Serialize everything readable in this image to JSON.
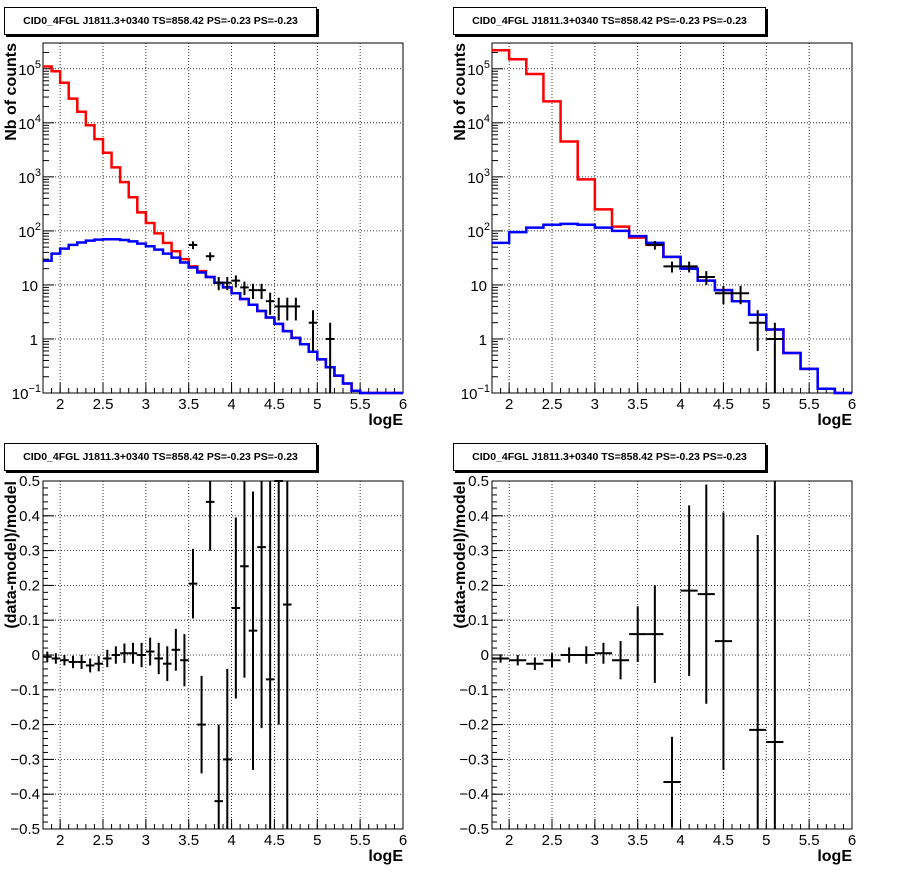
{
  "chart_data": [
    {
      "type": "line",
      "title": "CID0_4FGL J1811.3+0340 TS=858.42 PS=-0.23 PS=-0.23",
      "xlabel": "logE",
      "ylabel": "Nb of counts",
      "xlim": [
        1.8,
        6.0
      ],
      "ylim": [
        0.1,
        300000
      ],
      "log_y": true,
      "grid": true,
      "x_ticks": [
        "2",
        "2.5",
        "3",
        "3.5",
        "4",
        "4.5",
        "5",
        "5.5",
        "6"
      ],
      "y_ticks": [
        {
          "v": 0.1,
          "base": "10",
          "exp": "−1"
        },
        {
          "v": 1,
          "base": "1",
          "exp": ""
        },
        {
          "v": 10,
          "base": "10",
          "exp": ""
        },
        {
          "v": 100,
          "base": "10",
          "exp": "2"
        },
        {
          "v": 1000,
          "base": "10",
          "exp": "3"
        },
        {
          "v": 10000,
          "base": "10",
          "exp": "4"
        },
        {
          "v": 100000,
          "base": "10",
          "exp": "5"
        }
      ],
      "bin_edges": [
        1.8,
        1.9,
        2.0,
        2.1,
        2.2,
        2.3,
        2.4,
        2.5,
        2.6,
        2.7,
        2.8,
        2.9,
        3.0,
        3.1,
        3.2,
        3.3,
        3.4,
        3.5,
        3.6,
        3.7,
        3.8,
        3.9,
        4.0,
        4.1,
        4.2,
        4.3,
        4.4,
        4.5,
        4.6,
        4.7,
        4.8,
        4.9,
        5.0,
        5.1,
        5.2,
        5.3,
        5.4,
        5.5,
        5.6,
        5.7,
        5.8,
        5.9,
        6.0
      ],
      "series": [
        {
          "color": "#ff0000",
          "values": [
            110000,
            90000,
            55000,
            28000,
            16000,
            9000,
            5000,
            2800,
            1500,
            800,
            420,
            220,
            140,
            90,
            60,
            42,
            30,
            22,
            18,
            14,
            11,
            9,
            7,
            5.5,
            4.3,
            3.3,
            2.5,
            1.9,
            1.4,
            1.05,
            0.8,
            0.58,
            0.42,
            0.3,
            0.21,
            0.15,
            0.11,
            0.1,
            0.1,
            0.1,
            0.1,
            0.1
          ]
        },
        {
          "color": "#0000ff",
          "values": [
            28,
            38,
            47,
            55,
            61,
            66,
            69,
            70,
            70,
            68,
            64,
            58,
            52,
            45,
            38,
            32,
            26,
            21,
            17,
            14,
            11,
            9,
            7,
            5.5,
            4.3,
            3.3,
            2.5,
            1.9,
            1.4,
            1.05,
            0.8,
            0.58,
            0.42,
            0.3,
            0.21,
            0.15,
            0.11,
            0.1,
            0.1,
            0.1,
            0.1,
            0.1
          ]
        }
      ],
      "data_points": [
        {
          "x": 3.55,
          "y": 55,
          "ylo": 46,
          "yhi": 64
        },
        {
          "x": 3.75,
          "y": 34,
          "ylo": 28,
          "yhi": 40
        },
        {
          "x": 3.85,
          "y": 11,
          "ylo": 8,
          "yhi": 14
        },
        {
          "x": 3.95,
          "y": 11,
          "ylo": 8,
          "yhi": 14
        },
        {
          "x": 4.05,
          "y": 12,
          "ylo": 9,
          "yhi": 15
        },
        {
          "x": 4.15,
          "y": 9,
          "ylo": 6.5,
          "yhi": 11.5
        },
        {
          "x": 4.25,
          "y": 8,
          "ylo": 5.5,
          "yhi": 10.5
        },
        {
          "x": 4.35,
          "y": 8,
          "ylo": 5.5,
          "yhi": 10.5
        },
        {
          "x": 4.45,
          "y": 5,
          "ylo": 2.8,
          "yhi": 7.2
        },
        {
          "x": 4.55,
          "y": 4,
          "ylo": 2.2,
          "yhi": 5.8
        },
        {
          "x": 4.65,
          "y": 4,
          "ylo": 2.2,
          "yhi": 5.8
        },
        {
          "x": 4.75,
          "y": 4,
          "ylo": 2.2,
          "yhi": 5.8
        },
        {
          "x": 4.95,
          "y": 2,
          "ylo": 0.6,
          "yhi": 3.4
        },
        {
          "x": 5.15,
          "y": 1,
          "ylo": 0.1,
          "yhi": 2
        }
      ]
    },
    {
      "type": "line",
      "title": "CID0_4FGL J1811.3+0340 TS=858.42 PS=-0.23 PS=-0.23",
      "xlabel": "logE",
      "ylabel": "Nb of counts",
      "xlim": [
        1.8,
        6.0
      ],
      "ylim": [
        0.1,
        300000
      ],
      "log_y": true,
      "grid": true,
      "x_ticks": [
        "2",
        "2.5",
        "3",
        "3.5",
        "4",
        "4.5",
        "5",
        "5.5",
        "6"
      ],
      "y_ticks": [
        {
          "v": 0.1,
          "base": "10",
          "exp": "−1"
        },
        {
          "v": 1,
          "base": "1",
          "exp": ""
        },
        {
          "v": 10,
          "base": "10",
          "exp": ""
        },
        {
          "v": 100,
          "base": "10",
          "exp": "2"
        },
        {
          "v": 1000,
          "base": "10",
          "exp": "3"
        },
        {
          "v": 10000,
          "base": "10",
          "exp": "4"
        },
        {
          "v": 100000,
          "base": "10",
          "exp": "5"
        }
      ],
      "bin_edges": [
        1.8,
        2.0,
        2.2,
        2.4,
        2.6,
        2.8,
        3.0,
        3.2,
        3.4,
        3.6,
        3.8,
        4.0,
        4.2,
        4.4,
        4.6,
        4.8,
        5.0,
        5.2,
        5.4,
        5.6,
        5.8,
        6.0
      ],
      "series": [
        {
          "color": "#ff0000",
          "values": [
            220000,
            150000,
            80000,
            25000,
            4500,
            900,
            250,
            120,
            75,
            55,
            33,
            20,
            12,
            8,
            5,
            2.8,
            1.5,
            0.55,
            0.28,
            0.12,
            0.1
          ]
        },
        {
          "color": "#0000ff",
          "values": [
            60,
            95,
            115,
            130,
            135,
            130,
            115,
            100,
            80,
            60,
            33,
            20,
            12,
            8,
            5,
            2.8,
            1.5,
            0.55,
            0.28,
            0.12,
            0.1
          ]
        }
      ],
      "data_points": [
        {
          "x": 3.7,
          "y": 55,
          "ylo": 45,
          "yhi": 65
        },
        {
          "x": 3.9,
          "y": 22,
          "ylo": 17,
          "yhi": 27
        },
        {
          "x": 4.1,
          "y": 22,
          "ylo": 17,
          "yhi": 27
        },
        {
          "x": 4.3,
          "y": 14,
          "ylo": 10,
          "yhi": 18
        },
        {
          "x": 4.5,
          "y": 7,
          "ylo": 4.4,
          "yhi": 9.6
        },
        {
          "x": 4.7,
          "y": 7,
          "ylo": 4.4,
          "yhi": 9.6
        },
        {
          "x": 4.9,
          "y": 2,
          "ylo": 0.6,
          "yhi": 3.4
        },
        {
          "x": 5.1,
          "y": 1,
          "ylo": 0.1,
          "yhi": 2
        }
      ]
    },
    {
      "type": "scatter",
      "title": "CID0_4FGL J1811.3+0340 TS=858.42 PS=-0.23 PS=-0.23",
      "xlabel": "logE",
      "ylabel": "(data-model)/model",
      "xlim": [
        1.8,
        6.0
      ],
      "ylim": [
        -0.5,
        0.5
      ],
      "grid": true,
      "x_ticks": [
        "2",
        "2.5",
        "3",
        "3.5",
        "4",
        "4.5",
        "5",
        "5.5",
        "6"
      ],
      "y_ticks": [
        "−0.5",
        "−0.4",
        "−0.3",
        "−0.2",
        "−0.1",
        "0",
        "0.1",
        "0.2",
        "0.3",
        "0.4",
        "0.5"
      ],
      "data_points": [
        {
          "x": 1.85,
          "xw": 0.05,
          "y": -0.005,
          "err": 0.015
        },
        {
          "x": 1.95,
          "xw": 0.05,
          "y": -0.01,
          "err": 0.015
        },
        {
          "x": 2.05,
          "xw": 0.05,
          "y": -0.015,
          "err": 0.015
        },
        {
          "x": 2.15,
          "xw": 0.05,
          "y": -0.02,
          "err": 0.018
        },
        {
          "x": 2.25,
          "xw": 0.05,
          "y": -0.02,
          "err": 0.02
        },
        {
          "x": 2.35,
          "xw": 0.05,
          "y": -0.03,
          "err": 0.02
        },
        {
          "x": 2.45,
          "xw": 0.05,
          "y": -0.025,
          "err": 0.022
        },
        {
          "x": 2.55,
          "xw": 0.05,
          "y": -0.01,
          "err": 0.025
        },
        {
          "x": 2.65,
          "xw": 0.05,
          "y": 0.0,
          "err": 0.025
        },
        {
          "x": 2.75,
          "xw": 0.05,
          "y": 0.005,
          "err": 0.028
        },
        {
          "x": 2.85,
          "xw": 0.05,
          "y": 0.005,
          "err": 0.03
        },
        {
          "x": 2.95,
          "xw": 0.05,
          "y": 0.0,
          "err": 0.035
        },
        {
          "x": 3.05,
          "xw": 0.05,
          "y": 0.01,
          "err": 0.04
        },
        {
          "x": 3.15,
          "xw": 0.05,
          "y": -0.01,
          "err": 0.045
        },
        {
          "x": 3.25,
          "xw": 0.05,
          "y": -0.025,
          "err": 0.05
        },
        {
          "x": 3.35,
          "xw": 0.05,
          "y": 0.015,
          "err": 0.06
        },
        {
          "x": 3.45,
          "xw": 0.05,
          "y": -0.015,
          "err": 0.075
        },
        {
          "x": 3.55,
          "xw": 0.05,
          "y": 0.205,
          "err": 0.1
        },
        {
          "x": 3.65,
          "xw": 0.05,
          "y": -0.2,
          "err": 0.14
        },
        {
          "x": 3.75,
          "xw": 0.05,
          "y": 0.44,
          "err": 0.14
        },
        {
          "x": 3.85,
          "xw": 0.05,
          "y": -0.42,
          "err": 0.22
        },
        {
          "x": 3.95,
          "xw": 0.05,
          "y": -0.3,
          "err": 0.26
        },
        {
          "x": 4.05,
          "xw": 0.05,
          "y": 0.135,
          "err": 0.26
        },
        {
          "x": 4.15,
          "xw": 0.05,
          "y": 0.255,
          "err": 0.32
        },
        {
          "x": 4.25,
          "xw": 0.05,
          "y": 0.07,
          "err": 0.4
        },
        {
          "x": 4.35,
          "xw": 0.05,
          "y": 0.31,
          "err": 0.52
        },
        {
          "x": 4.45,
          "xw": 0.05,
          "y": -0.07,
          "err": 0.6
        },
        {
          "x": 4.55,
          "xw": 0.05,
          "y": 0.5,
          "err": 0.7
        },
        {
          "x": 4.65,
          "xw": 0.05,
          "y": 0.145,
          "err": 0.8
        }
      ]
    },
    {
      "type": "scatter",
      "title": "CID0_4FGL J1811.3+0340 TS=858.42 PS=-0.23 PS=-0.23",
      "xlabel": "logE",
      "ylabel": "(data-model)/model",
      "xlim": [
        1.8,
        6.0
      ],
      "ylim": [
        -0.5,
        0.5
      ],
      "grid": true,
      "x_ticks": [
        "2",
        "2.5",
        "3",
        "3.5",
        "4",
        "4.5",
        "5",
        "5.5",
        "6"
      ],
      "y_ticks": [
        "−0.5",
        "−0.4",
        "−0.3",
        "−0.2",
        "−0.1",
        "0",
        "0.1",
        "0.2",
        "0.3",
        "0.4",
        "0.5"
      ],
      "data_points": [
        {
          "x": 1.9,
          "xw": 0.1,
          "y": -0.01,
          "err": 0.012
        },
        {
          "x": 2.1,
          "xw": 0.1,
          "y": -0.015,
          "err": 0.015
        },
        {
          "x": 2.3,
          "xw": 0.1,
          "y": -0.025,
          "err": 0.018
        },
        {
          "x": 2.5,
          "xw": 0.1,
          "y": -0.015,
          "err": 0.02
        },
        {
          "x": 2.7,
          "xw": 0.1,
          "y": 0.0,
          "err": 0.022
        },
        {
          "x": 2.9,
          "xw": 0.1,
          "y": 0.0,
          "err": 0.025
        },
        {
          "x": 3.1,
          "xw": 0.1,
          "y": 0.005,
          "err": 0.03
        },
        {
          "x": 3.3,
          "xw": 0.1,
          "y": -0.015,
          "err": 0.055
        },
        {
          "x": 3.5,
          "xw": 0.1,
          "y": 0.06,
          "err": 0.08
        },
        {
          "x": 3.7,
          "xw": 0.1,
          "y": 0.06,
          "err": 0.14
        },
        {
          "x": 3.9,
          "xw": 0.1,
          "y": -0.365,
          "err": 0.13
        },
        {
          "x": 4.1,
          "xw": 0.1,
          "y": 0.185,
          "err": 0.245
        },
        {
          "x": 4.3,
          "xw": 0.1,
          "y": 0.175,
          "err": 0.315
        },
        {
          "x": 4.5,
          "xw": 0.1,
          "y": 0.04,
          "err": 0.37
        },
        {
          "x": 4.9,
          "xw": 0.1,
          "y": -0.215,
          "err": 0.56
        },
        {
          "x": 5.1,
          "xw": 0.1,
          "y": -0.25,
          "err": 0.8
        }
      ]
    }
  ]
}
